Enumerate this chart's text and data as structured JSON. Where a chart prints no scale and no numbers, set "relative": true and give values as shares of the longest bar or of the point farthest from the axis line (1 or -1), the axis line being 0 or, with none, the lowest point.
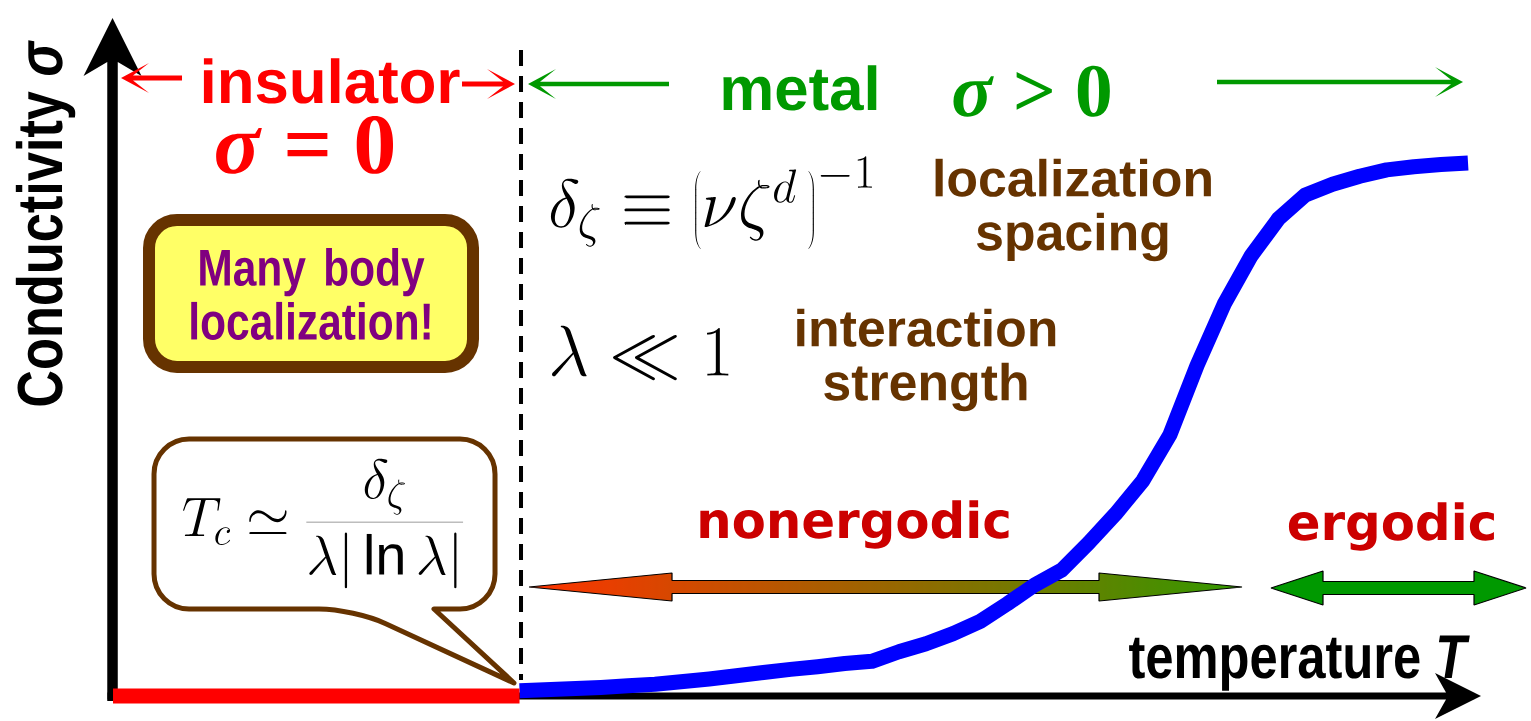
{
  "chart_data": {
    "type": "line",
    "relative": true,
    "xlabel": "temperature *T*",
    "ylabel": "Conductivity *σ*",
    "categories": [
      null,
      null,
      null,
      null,
      null,
      null,
      null,
      null,
      null,
      null,
      null,
      null,
      null,
      null,
      null,
      null,
      null,
      null,
      null,
      null,
      null,
      null,
      null,
      null,
      null,
      null,
      null,
      null,
      null,
      null,
      null,
      null,
      null,
      null,
      null,
      null,
      null,
      null,
      null,
      null,
      null,
      null,
      null,
      null,
      null,
      null,
      null,
      null,
      null,
      null,
      null
    ],
    "series": [
      {
        "color": "#ff0000",
        "values": [
          0,
          0,
          0,
          0,
          0,
          0,
          0,
          0,
          0,
          0,
          0,
          0,
          0,
          0,
          0,
          0,
          null,
          null,
          null,
          null,
          null,
          null,
          null,
          null,
          null,
          null,
          null,
          null,
          null,
          null,
          null,
          null,
          null,
          null,
          null,
          null,
          null,
          null,
          null,
          null,
          null,
          null,
          null,
          null,
          null,
          null,
          null,
          null,
          null,
          null,
          null
        ]
      },
      {
        "color": "#0000ff",
        "values": [
          null,
          null,
          null,
          null,
          null,
          null,
          null,
          null,
          null,
          null,
          null,
          null,
          null,
          null,
          null,
          0.01,
          0.012,
          0.014,
          0.016,
          0.019,
          0.022,
          0.027,
          0.032,
          0.038,
          0.044,
          0.05,
          0.055,
          0.061,
          0.065,
          0.083,
          0.098,
          0.117,
          0.14,
          0.173,
          0.208,
          0.236,
          0.287,
          0.342,
          0.404,
          0.49,
          0.62,
          0.735,
          0.826,
          0.895,
          0.94,
          0.96,
          0.975,
          0.987,
          0.993,
          0.997,
          1.0
        ]
      }
    ],
    "annotations": [
      "insulator",
      "metal",
      "*σ* = 0",
      "*σ* > 0",
      "\\delta_{\\zeta} \\equiv \\left(\\nu\\zeta^{d}\\,\\right)^{-1}",
      "localization spacing",
      "\\lambda \\ll 1",
      "interaction strength",
      "Many body localization!",
      "T_c \\simeq \\frac{\\delta_\\zeta}{\\lambda|\\ln\\lambda|}",
      "nonergodic",
      "ergodic"
    ]
  }
}
